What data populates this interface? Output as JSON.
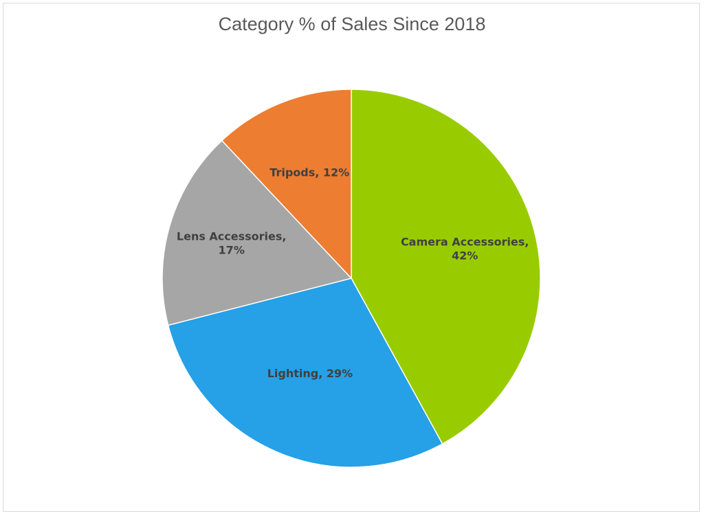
{
  "chart_data": {
    "type": "pie",
    "title": "Category % of Sales Since 2018",
    "slices": [
      {
        "name": "Camera Accessories",
        "value": 42,
        "label": [
          "Camera Accessories,",
          "42%"
        ],
        "color": "#99cc00"
      },
      {
        "name": "Lighting",
        "value": 29,
        "label": [
          "Lighting, 29%"
        ],
        "color": "#26a0e6"
      },
      {
        "name": "Lens Accessories",
        "value": 17,
        "label": [
          "Lens Accessories,",
          "17%"
        ],
        "color": "#a6a6a6"
      },
      {
        "name": "Tripods",
        "value": 12,
        "label": [
          "Tripods, 12%"
        ],
        "color": "#ed7d31"
      }
    ]
  }
}
